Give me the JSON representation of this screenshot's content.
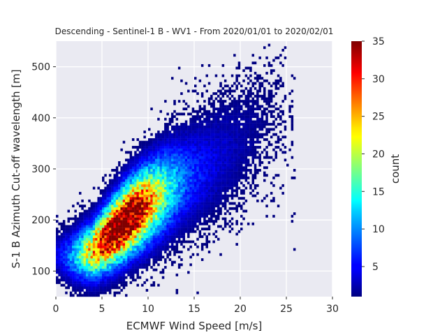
{
  "chart_data": {
    "type": "heatmap",
    "title": "Descending - Sentinel-1 B - WV1 - From 2020/01/01 to 2020/02/01",
    "xlabel": "ECMWF Wind Speed [m/s]",
    "ylabel": "S-1 B Azimuth Cut-off wavelength [m]",
    "colorbar_label": "count",
    "colormap": "jet",
    "xlim": [
      0,
      30
    ],
    "ylim": [
      50,
      550
    ],
    "x_ticks": [
      "0",
      "5",
      "10",
      "15",
      "20",
      "25",
      "30"
    ],
    "y_ticks": [
      "100",
      "200",
      "300",
      "400",
      "500"
    ],
    "colorbar_range": [
      1,
      35
    ],
    "colorbar_ticks": [
      "5",
      "10",
      "15",
      "20",
      "25",
      "30",
      "35"
    ],
    "bin_size": {
      "x": 0.25,
      "y": 5
    },
    "distribution": {
      "ridge": [
        [
          0.5,
          130
        ],
        [
          2,
          130
        ],
        [
          4,
          140
        ],
        [
          6,
          172
        ],
        [
          8,
          205
        ],
        [
          10,
          232
        ],
        [
          12,
          258
        ],
        [
          14,
          280
        ],
        [
          16,
          300
        ],
        [
          18,
          325
        ],
        [
          20,
          350
        ],
        [
          22,
          380
        ],
        [
          24,
          410
        ]
      ],
      "peak": {
        "x": 7.0,
        "y": 180,
        "count": 35
      },
      "secondary_peaks": [
        {
          "x": 8.5,
          "y": 215,
          "count": 26
        },
        {
          "x": 4.5,
          "y": 145,
          "count": 27
        }
      ]
    },
    "grid": true,
    "background": "#EAEAF2"
  }
}
